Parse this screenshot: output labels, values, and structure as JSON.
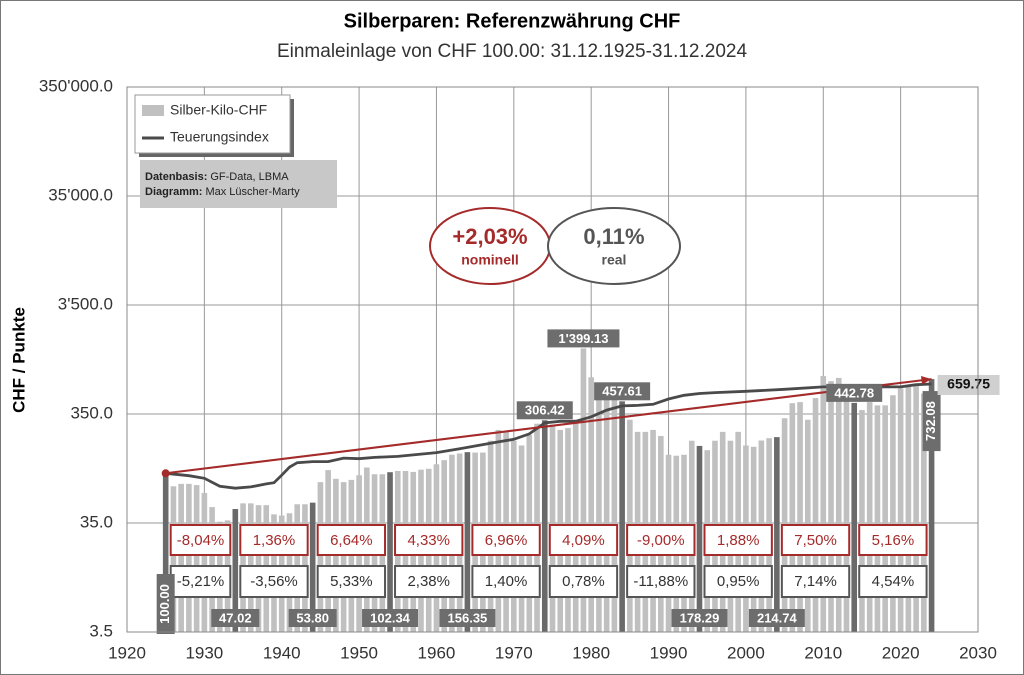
{
  "chart_data": {
    "type": "bar",
    "title": "Silberparen: Referenzwährung CHF",
    "subtitle": "Einmaleinlage von CHF 100.00: 31.12.1925-31.12.2024",
    "y_label": "CHF / Punkte",
    "log_scale": true,
    "grid": true,
    "xlim": [
      1920,
      2030
    ],
    "xticks": [
      1920,
      1930,
      1940,
      1950,
      1960,
      1970,
      1980,
      1990,
      2000,
      2010,
      2020,
      2030
    ],
    "ylim": [
      3.5,
      350000
    ],
    "yticks": [
      3.5,
      {
        "value": 35,
        "label": "35.0"
      },
      {
        "value": 350,
        "label": "350.0"
      },
      {
        "value": 3500,
        "label": "3'500.0"
      },
      {
        "value": 35000,
        "label": "35'000.0"
      },
      {
        "value": 350000,
        "label": "350'000.0"
      }
    ],
    "series": [
      {
        "name": "Silber-Kilo-CHF",
        "type": "bar",
        "color": "#c0c0c0",
        "x": [
          1925,
          1926,
          1927,
          1928,
          1929,
          1930,
          1931,
          1932,
          1933,
          1934,
          1935,
          1936,
          1937,
          1938,
          1939,
          1940,
          1941,
          1942,
          1943,
          1944,
          1945,
          1946,
          1947,
          1948,
          1949,
          1950,
          1951,
          1952,
          1953,
          1954,
          1955,
          1956,
          1957,
          1958,
          1959,
          1960,
          1961,
          1962,
          1963,
          1964,
          1965,
          1966,
          1967,
          1968,
          1969,
          1970,
          1971,
          1972,
          1973,
          1974,
          1975,
          1976,
          1977,
          1978,
          1979,
          1980,
          1981,
          1982,
          1983,
          1984,
          1985,
          1986,
          1987,
          1988,
          1989,
          1990,
          1991,
          1992,
          1993,
          1994,
          1995,
          1996,
          1997,
          1998,
          1999,
          2000,
          2001,
          2002,
          2003,
          2004,
          2005,
          2006,
          2007,
          2008,
          2009,
          2010,
          2011,
          2012,
          2013,
          2014,
          2015,
          2016,
          2017,
          2018,
          2019,
          2020,
          2021,
          2022,
          2023,
          2024
        ],
        "values": [
          100,
          76,
          80,
          80,
          78,
          66,
          49,
          36,
          37,
          47.02,
          53,
          53,
          51,
          51,
          42,
          41,
          43,
          52,
          52,
          53.8,
          83,
          107,
          89,
          83,
          87,
          96,
          113,
          98,
          98,
          102.34,
          105,
          105,
          103,
          108,
          110,
          121,
          132,
          148,
          152,
          156.35,
          155,
          155,
          199,
          250,
          240,
          199,
          180,
          225,
          285,
          306.42,
          280,
          250,
          260,
          310,
          1399.13,
          760,
          560,
          500,
          480,
          457.61,
          310,
          240,
          240,
          250,
          220,
          148,
          145,
          148,
          199,
          178.29,
          163,
          199,
          240,
          199,
          240,
          180,
          175,
          200,
          210,
          214.74,
          320,
          440,
          450,
          310,
          490,
          780,
          700,
          750,
          470,
          442.78,
          380,
          450,
          420,
          420,
          520,
          600,
          620,
          660,
          540,
          732.08
        ],
        "value_labels": [
          "100.00",
          null,
          null,
          null,
          null,
          null,
          null,
          null,
          null,
          "47.02",
          null,
          null,
          null,
          null,
          null,
          null,
          null,
          null,
          null,
          "53.80",
          null,
          null,
          null,
          null,
          null,
          null,
          null,
          null,
          null,
          "102.34",
          null,
          null,
          null,
          null,
          null,
          null,
          null,
          null,
          null,
          "156.35",
          null,
          null,
          null,
          null,
          null,
          null,
          null,
          null,
          null,
          "306.42",
          null,
          null,
          null,
          null,
          "1'399.13",
          null,
          null,
          null,
          null,
          "457.61",
          null,
          null,
          null,
          null,
          null,
          null,
          null,
          null,
          null,
          "178.29",
          null,
          null,
          null,
          null,
          null,
          null,
          null,
          null,
          null,
          "214.74",
          null,
          null,
          null,
          null,
          null,
          null,
          null,
          null,
          null,
          "442.78",
          null,
          null,
          null,
          null,
          null,
          null,
          null,
          null,
          null,
          "732.08"
        ]
      },
      {
        "name": "Teuerungsindex",
        "type": "line",
        "color": "#4a4a4a",
        "x": [
          1925,
          1928,
          1930,
          1932,
          1934,
          1936,
          1938,
          1939,
          1940,
          1941,
          1942,
          1944,
          1946,
          1948,
          1950,
          1952,
          1955,
          1958,
          1960,
          1963,
          1965,
          1968,
          1970,
          1972,
          1974,
          1976,
          1978,
          1980,
          1982,
          1984,
          1986,
          1988,
          1990,
          1992,
          1994,
          1996,
          2000,
          2005,
          2010,
          2015,
          2020,
          2022,
          2024
        ],
        "values": [
          100,
          95,
          90,
          76,
          73,
          75,
          80,
          82,
          96,
          114,
          125,
          128,
          128,
          138,
          136,
          140,
          143,
          150,
          155,
          168,
          178,
          194,
          205,
          230,
          290,
          300,
          300,
          330,
          380,
          415,
          420,
          430,
          480,
          520,
          540,
          550,
          565,
          590,
          620,
          620,
          620,
          650,
          659.75
        ]
      }
    ],
    "trend_line": {
      "color": "#a52a2a",
      "x": [
        1925,
        2024
      ],
      "values": [
        100,
        732.08
      ]
    },
    "nominal_returns": [
      "-8,04%",
      "1,36%",
      "6,64%",
      "4,33%",
      "6,96%",
      "4,09%",
      "-9,00%",
      "1,88%",
      "7,50%",
      "5,16%"
    ],
    "real_returns": [
      "-5,21%",
      "-3,56%",
      "5,33%",
      "2,38%",
      "1,40%",
      "0,78%",
      "-11,88%",
      "0,95%",
      "7,14%",
      "4,54%"
    ],
    "nominal_rate": "+2,03%",
    "nominal_label": "nominell",
    "real_rate": "0,11%",
    "real_label": "real",
    "source_lines": [
      {
        "label": "Datenbasis:",
        "text": "GF-Data, LBMA"
      },
      {
        "label": "Diagramm:",
        "text": "Max Lüscher-Marty"
      }
    ]
  }
}
